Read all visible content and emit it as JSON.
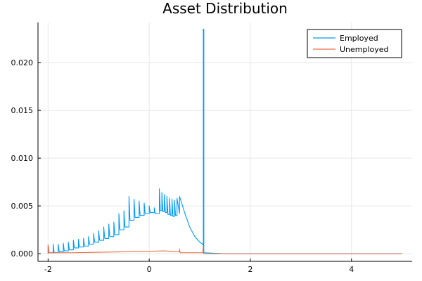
{
  "chart_data": {
    "type": "line",
    "title": "Asset Distribution",
    "xlabel": "",
    "ylabel": "",
    "xlim": [
      -2.2,
      5.2
    ],
    "ylim": [
      -0.0008,
      0.0242
    ],
    "xticks": [
      -2,
      0,
      2,
      4
    ],
    "xtick_labels": [
      "-2",
      "0",
      "2",
      "4"
    ],
    "yticks": [
      0.0,
      0.005,
      0.01,
      0.015,
      0.02
    ],
    "ytick_labels": [
      "0.000",
      "0.005",
      "0.010",
      "0.015",
      "0.020"
    ],
    "grid": true,
    "legend_position": "top-right",
    "series": [
      {
        "name": "Employed",
        "color": "#009af9",
        "x": [
          -2.0,
          -2.0,
          -1.98,
          -1.9,
          -1.9,
          -1.88,
          -1.8,
          -1.8,
          -1.78,
          -1.7,
          -1.7,
          -1.68,
          -1.6,
          -1.6,
          -1.58,
          -1.5,
          -1.5,
          -1.48,
          -1.4,
          -1.4,
          -1.38,
          -1.3,
          -1.3,
          -1.28,
          -1.2,
          -1.2,
          -1.18,
          -1.1,
          -1.1,
          -1.08,
          -1.0,
          -1.0,
          -0.98,
          -0.9,
          -0.9,
          -0.88,
          -0.8,
          -0.8,
          -0.78,
          -0.7,
          -0.7,
          -0.68,
          -0.6,
          -0.6,
          -0.58,
          -0.5,
          -0.5,
          -0.48,
          -0.4,
          -0.4,
          -0.38,
          -0.3,
          -0.3,
          -0.28,
          -0.2,
          -0.2,
          -0.18,
          -0.1,
          -0.1,
          -0.08,
          0.0,
          0.0,
          0.02,
          0.1,
          0.1,
          0.12,
          0.2,
          0.2,
          0.22,
          0.25,
          0.25,
          0.27,
          0.3,
          0.3,
          0.32,
          0.35,
          0.35,
          0.37,
          0.4,
          0.4,
          0.42,
          0.45,
          0.45,
          0.47,
          0.5,
          0.5,
          0.52,
          0.55,
          0.55,
          0.6,
          0.6,
          0.7,
          0.8,
          0.9,
          1.0,
          1.06,
          1.07,
          1.07,
          1.08,
          1.08,
          1.5,
          2.0,
          3.0,
          4.0,
          5.0
        ],
        "y": [
          0.0,
          0.0009,
          0.0001,
          0.0001,
          0.001,
          0.0001,
          0.0001,
          0.001,
          0.0002,
          0.0002,
          0.0011,
          0.0003,
          0.0003,
          0.0012,
          0.0004,
          0.0004,
          0.0014,
          0.0006,
          0.0006,
          0.0015,
          0.0007,
          0.0007,
          0.0016,
          0.0008,
          0.0008,
          0.0018,
          0.001,
          0.001,
          0.0021,
          0.0012,
          0.0012,
          0.0024,
          0.0014,
          0.0014,
          0.0028,
          0.0016,
          0.0016,
          0.0031,
          0.0018,
          0.0018,
          0.0033,
          0.002,
          0.002,
          0.0042,
          0.0025,
          0.0025,
          0.0045,
          0.0028,
          0.0028,
          0.006,
          0.0035,
          0.0035,
          0.0057,
          0.0038,
          0.0038,
          0.0055,
          0.004,
          0.004,
          0.0053,
          0.0042,
          0.0042,
          0.005,
          0.0043,
          0.0043,
          0.0048,
          0.0042,
          0.0042,
          0.0068,
          0.0045,
          0.0045,
          0.0064,
          0.0044,
          0.0044,
          0.0062,
          0.0043,
          0.0043,
          0.006,
          0.0041,
          0.0041,
          0.0058,
          0.004,
          0.004,
          0.0057,
          0.0039,
          0.0039,
          0.0056,
          0.004,
          0.004,
          0.0058,
          0.0042,
          0.006,
          0.0043,
          0.0028,
          0.0018,
          0.0012,
          0.001,
          0.0008,
          0.0235,
          0.0235,
          0.0001,
          0.0,
          0.0,
          0.0,
          0.0,
          0.0
        ]
      },
      {
        "name": "Unemployed",
        "color": "#e26f46",
        "x": [
          -2.0,
          -2.0,
          -1.98,
          -1.5,
          -1.0,
          -0.5,
          0.0,
          0.3,
          0.5,
          0.6,
          0.6,
          0.61,
          0.8,
          1.0,
          1.06,
          1.07,
          1.07,
          1.08,
          1.5,
          2.0,
          3.0,
          4.0,
          5.0
        ],
        "y": [
          0.0,
          0.0009,
          0.0001,
          0.0001,
          0.00015,
          0.0002,
          0.00025,
          0.0003,
          0.0002,
          0.0002,
          0.0005,
          0.0001,
          0.0001,
          0.0001,
          0.0001,
          0.0008,
          0.0001,
          0.0,
          0.0,
          0.0,
          0.0,
          0.0,
          0.0
        ]
      }
    ]
  }
}
